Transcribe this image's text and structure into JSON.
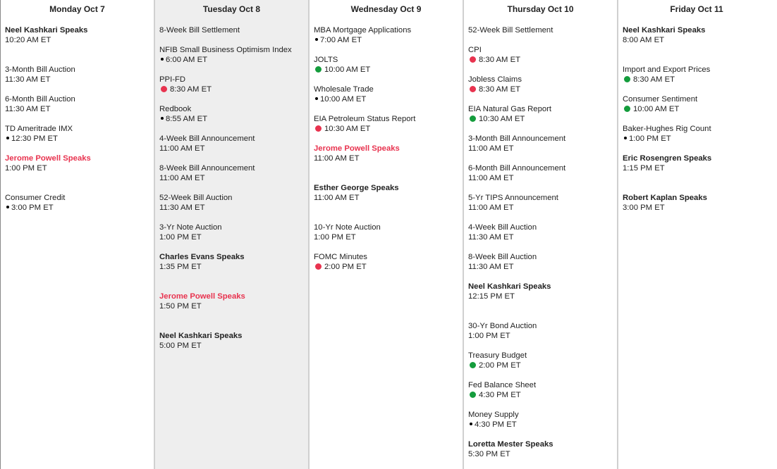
{
  "colors": {
    "red": "#e8334f",
    "green": "#149c3c",
    "black": "#000000",
    "today_bg": "#eeeeee"
  },
  "days": [
    {
      "label": "Monday Oct 7",
      "today": false,
      "events": [
        {
          "title": "Neel Kashkari Speaks",
          "time": "10:20 AM ET",
          "speaker": true,
          "dot": ""
        },
        {
          "title": "3-Month Bill Auction",
          "time": "11:30 AM ET",
          "dot": ""
        },
        {
          "title": "6-Month Bill Auction",
          "time": "11:30 AM ET",
          "dot": ""
        },
        {
          "title": "TD Ameritrade IMX",
          "time": "12:30 PM ET",
          "dot": "black"
        },
        {
          "title": "Jerome Powell Speaks",
          "time": "1:00 PM ET",
          "speaker": true,
          "highlight": true,
          "dot": ""
        },
        {
          "title": "Consumer Credit",
          "time": "3:00 PM ET",
          "dot": "black"
        }
      ]
    },
    {
      "label": "Tuesday Oct 8",
      "today": true,
      "events": [
        {
          "title": "8-Week Bill Settlement",
          "time": "",
          "dot": ""
        },
        {
          "title": "NFIB Small Business Optimism Index",
          "time": "6:00 AM ET",
          "dot": "black"
        },
        {
          "title": "PPI-FD",
          "time": "8:30 AM ET",
          "dot": "red"
        },
        {
          "title": "Redbook",
          "time": "8:55 AM ET",
          "dot": "black"
        },
        {
          "title": "4-Week Bill Announcement",
          "time": "11:00 AM ET",
          "dot": ""
        },
        {
          "title": "8-Week Bill Announcement",
          "time": "11:00 AM ET",
          "dot": ""
        },
        {
          "title": "52-Week Bill Auction",
          "time": "11:30 AM ET",
          "dot": ""
        },
        {
          "title": "3-Yr Note Auction",
          "time": "1:00 PM ET",
          "dot": ""
        },
        {
          "title": "Charles Evans Speaks",
          "time": "1:35 PM ET",
          "speaker": true,
          "dot": ""
        },
        {
          "title": "Jerome Powell Speaks",
          "time": "1:50 PM ET",
          "speaker": true,
          "highlight": true,
          "dot": ""
        },
        {
          "title": "Neel Kashkari Speaks",
          "time": "5:00 PM ET",
          "speaker": true,
          "dot": ""
        }
      ]
    },
    {
      "label": "Wednesday Oct 9",
      "today": false,
      "events": [
        {
          "title": "MBA Mortgage Applications",
          "time": "7:00 AM ET",
          "dot": "black"
        },
        {
          "title": "JOLTS",
          "time": "10:00 AM ET",
          "dot": "green"
        },
        {
          "title": "Wholesale Trade",
          "time": "10:00 AM ET",
          "dot": "black"
        },
        {
          "title": "EIA Petroleum Status Report",
          "time": "10:30 AM ET",
          "dot": "red"
        },
        {
          "title": "Jerome Powell Speaks",
          "time": "11:00 AM ET",
          "speaker": true,
          "highlight": true,
          "dot": ""
        },
        {
          "title": "Esther George Speaks",
          "time": "11:00 AM ET",
          "speaker": true,
          "dot": ""
        },
        {
          "title": "10-Yr Note Auction",
          "time": "1:00 PM ET",
          "dot": ""
        },
        {
          "title": "FOMC Minutes",
          "time": "2:00 PM ET",
          "dot": "red"
        }
      ]
    },
    {
      "label": "Thursday Oct 10",
      "today": false,
      "events": [
        {
          "title": "52-Week Bill Settlement",
          "time": "",
          "dot": ""
        },
        {
          "title": "CPI",
          "time": "8:30 AM ET",
          "dot": "red"
        },
        {
          "title": "Jobless Claims",
          "time": "8:30 AM ET",
          "dot": "red"
        },
        {
          "title": "EIA Natural Gas Report",
          "time": "10:30 AM ET",
          "dot": "green"
        },
        {
          "title": "3-Month Bill Announcement",
          "time": "11:00 AM ET",
          "dot": ""
        },
        {
          "title": "6-Month Bill Announcement",
          "time": "11:00 AM ET",
          "dot": ""
        },
        {
          "title": "5-Yr TIPS Announcement",
          "time": "11:00 AM ET",
          "dot": ""
        },
        {
          "title": "4-Week Bill Auction",
          "time": "11:30 AM ET",
          "dot": ""
        },
        {
          "title": "8-Week Bill Auction",
          "time": "11:30 AM ET",
          "dot": ""
        },
        {
          "title": "Neel Kashkari Speaks",
          "time": "12:15 PM ET",
          "speaker": true,
          "dot": ""
        },
        {
          "title": "30-Yr Bond Auction",
          "time": "1:00 PM ET",
          "dot": ""
        },
        {
          "title": "Treasury Budget",
          "time": "2:00 PM ET",
          "dot": "green"
        },
        {
          "title": "Fed Balance Sheet",
          "time": "4:30 PM ET",
          "dot": "green"
        },
        {
          "title": "Money Supply",
          "time": "4:30 PM ET",
          "dot": "black"
        },
        {
          "title": "Loretta Mester Speaks",
          "time": "5:30 PM ET",
          "speaker": true,
          "dot": ""
        }
      ]
    },
    {
      "label": "Friday Oct 11",
      "today": false,
      "events": [
        {
          "title": "Neel Kashkari Speaks",
          "time": "8:00 AM ET",
          "speaker": true,
          "dot": ""
        },
        {
          "title": "Import and Export Prices",
          "time": "8:30 AM ET",
          "dot": "green"
        },
        {
          "title": "Consumer Sentiment",
          "time": "10:00 AM ET",
          "dot": "green"
        },
        {
          "title": "Baker-Hughes Rig Count",
          "time": "1:00 PM ET",
          "dot": "black"
        },
        {
          "title": "Eric Rosengren Speaks",
          "time": "1:15 PM ET",
          "speaker": true,
          "dot": ""
        },
        {
          "title": "Robert Kaplan Speaks",
          "time": "3:00 PM ET",
          "speaker": true,
          "dot": ""
        }
      ]
    }
  ]
}
